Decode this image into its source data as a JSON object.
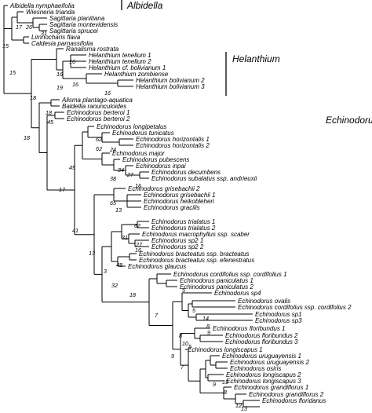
{
  "taxa": [
    "Albidella nymphaeifolia",
    "Wiesneria trianda",
    "Sagittaria planitiana",
    "Sagittaria montevidensis",
    "Sagittaria sprucei",
    "Limnocharis flava",
    "Caldesia parnassifolia",
    "Ranalisma rostrata",
    "Helanthium tenellum 1",
    "Helanthium tenellum 2",
    "Helanthium cf. bolivianum 1",
    "Helanthium zombiense",
    "Helanthium bolivianum 2",
    "Helanthium bolivianum 3",
    "Alisma plantago-aquatica",
    "Baldellia ranunculoides",
    "Echinodorus berteroi 1",
    "Echinodorus berteroi  2",
    "Echinodorus longipetalus",
    "Echinodorus tunicatus",
    "Echinodorus horizontalis 1",
    "Echinodorus horizontalis 2",
    "Echinodorus major",
    "Echinodorus pubescens",
    "Echinodorus inpai",
    "Echinodorus decumbens",
    "Echinodorus subalatus ssp. andrieuxii",
    "Echinodorus grisebachii 2",
    "Echinodorus grisebachii 1",
    "Echinodorus heikobleheri",
    "Echinodorus gracilis",
    "Echinodorus trialatus 1",
    "Echinodorus trialatus 2",
    "Echinodorus macrophyllus ssp. scaber",
    "Echinodorus sp2 1",
    "Echinodorus sp2 2",
    "Echinodorus bracteatus ssp. bracteatus",
    "Echinodorus bracteatus ssp. efenestratus",
    "Echinodorus glaucus",
    "Echinodorus cordifolius ssp. cordifolius 1",
    "Echinodorus paniculatus 1",
    "Echinodorus paniculatus 2",
    "Echinodorus sp4",
    "Echinodorus ovalis",
    "Echinodorus cordifolius ssp. cordifolius 2",
    "Echinodorus sp1",
    "Echinodorus sp3",
    "Echinodorus floribundus 1",
    "Echinodorus floribundus 2",
    "Echinodorus floribundus 3",
    "Echinodorus longiscapus 1",
    "Echinodorus uruguayensis 1",
    "Echinodorus uruguayensis 2",
    "Echinodorus osiris",
    "Echinodorus longiscapus 2",
    "Echinodorus longiscapus 3",
    "Echinodorus grandiflorus 1",
    "Echinodorus grandiflorus 2",
    "Echinodorus floridanus"
  ],
  "clades": [
    {
      "name": "Albidella"
    },
    {
      "name": "Helanthium"
    },
    {
      "name": "Echinodoru"
    }
  ],
  "support_values": [
    "17",
    "26",
    "31",
    "15",
    "15",
    "18",
    "16",
    "19",
    "16",
    "16",
    "16",
    "18",
    "45",
    "18",
    "62",
    "24",
    "62",
    "34",
    "38",
    "27",
    "16",
    "17",
    "45",
    "65",
    "13",
    "41",
    "62",
    "31",
    "27",
    "16",
    "13",
    "48",
    "3",
    "32",
    "18",
    "5",
    "7",
    "5",
    "14",
    "8",
    "9",
    "8",
    "5",
    "10",
    "9",
    "7",
    "13",
    "9",
    "8",
    "12",
    "13"
  ]
}
